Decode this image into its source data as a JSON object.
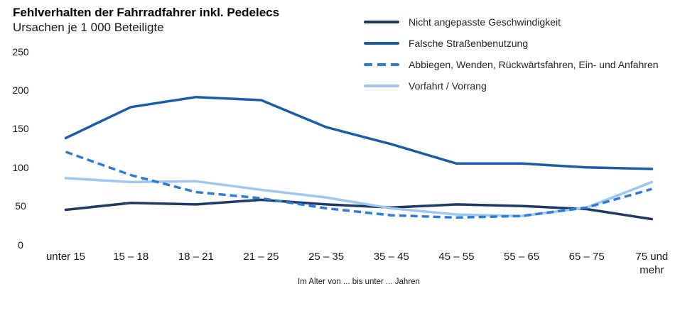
{
  "header": {
    "title": "Fehlverhalten der Fahrradfahrer inkl. Pedelecs",
    "subtitle": "Ursachen je 1 000 Beteiligte"
  },
  "chart_data": {
    "type": "line",
    "title": "Fehlverhalten der Fahrradfahrer inkl. Pedelecs",
    "subtitle": "Ursachen je 1 000 Beteiligte",
    "categories": [
      "unter 15",
      "15 – 18",
      "18 – 21",
      "21 – 25",
      "25 – 35",
      "35 – 45",
      "45 – 55",
      "55 – 65",
      "65 – 75",
      "75 und mehr"
    ],
    "series": [
      {
        "name": "Nicht angepasste Geschwindigkeit",
        "color": "#1F3864",
        "style": "solid",
        "values": [
          45,
          54,
          52,
          58,
          52,
          48,
          52,
          50,
          46,
          33
        ]
      },
      {
        "name": "Falsche Straßenbenutzung",
        "color": "#1B5CA8",
        "style": "solid",
        "values": [
          138,
          178,
          191,
          187,
          152,
          130,
          105,
          105,
          100,
          98
        ]
      },
      {
        "name": "Abbiegen, Wenden, Rückwärtsfahren, Ein- und Anfahren",
        "color": "#2D7BD8",
        "style": "dashed",
        "values": [
          120,
          90,
          68,
          60,
          47,
          38,
          35,
          37,
          48,
          72
        ]
      },
      {
        "name": "Vorfahrt / Vorrang",
        "color": "#9EC6EF",
        "style": "solid",
        "values": [
          86,
          81,
          82,
          71,
          61,
          47,
          39,
          37,
          48,
          81
        ]
      }
    ],
    "ylim": [
      0,
      250
    ],
    "yticks": [
      0,
      50,
      100,
      150,
      200,
      250
    ],
    "xlabel": "Im Alter von ... bis unter ... Jahren",
    "grid": false,
    "axis_lines": false,
    "legend_position": "top-right",
    "background": "#ffffff"
  }
}
